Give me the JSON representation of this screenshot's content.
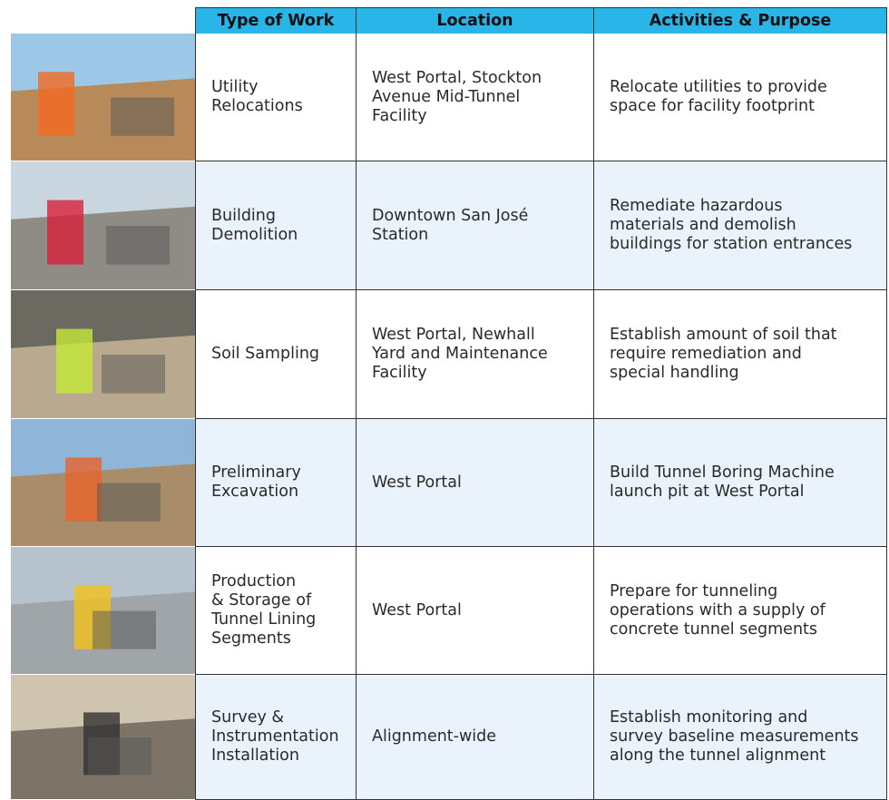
{
  "table": {
    "header": [
      "Type of Work",
      "Location",
      "Activities & Purpose"
    ],
    "rows": [
      {
        "type": [
          "Utility",
          "Relocations"
        ],
        "location": [
          "West Portal, Stockton",
          "Avenue Mid-Tunnel",
          "Facility"
        ],
        "purpose": [
          "Relocate utilities to provide",
          "space for facility footprint"
        ]
      },
      {
        "type": [
          "Building",
          "Demolition"
        ],
        "location": [
          "Downtown San José",
          "Station"
        ],
        "purpose": [
          "Remediate hazardous",
          "materials and demolish",
          "buildings for station entrances"
        ]
      },
      {
        "type": [
          "Soil Sampling"
        ],
        "location": [
          "West Portal, Newhall",
          "Yard and Maintenance",
          "Facility"
        ],
        "purpose": [
          "Establish amount of soil that",
          "require remediation and",
          "special handling"
        ]
      },
      {
        "type": [
          "Preliminary",
          "Excavation"
        ],
        "location": [
          "West Portal"
        ],
        "purpose": [
          "Build Tunnel Boring Machine",
          "launch pit at West Portal"
        ]
      },
      {
        "type": [
          "Production",
          "& Storage of",
          "Tunnel Lining",
          "Segments"
        ],
        "location": [
          "West Portal"
        ],
        "purpose": [
          "Prepare for tunneling",
          "operations with a supply of",
          "concrete tunnel segments"
        ]
      },
      {
        "type": [
          "Survey &",
          "Instrumentation",
          "Installation"
        ],
        "location": [
          "Alignment-wide"
        ],
        "purpose": [
          "Establish monitoring and",
          "survey baseline measurements",
          "along the tunnel alignment"
        ]
      }
    ]
  }
}
